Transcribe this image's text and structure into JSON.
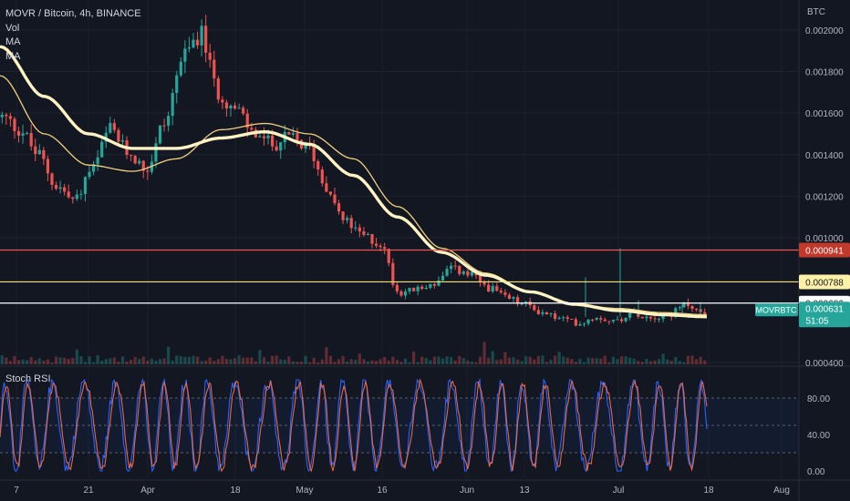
{
  "legend": {
    "title": "MOVR / Bitcoin, 4h, BINANCE",
    "vol": "Vol",
    "ma1": "MA",
    "ma2": "MA"
  },
  "rsi": {
    "title": "Stoch RSI"
  },
  "axis": {
    "unit": "BTC"
  },
  "colors": {
    "bg": "#131722",
    "up": "#26a69a",
    "down": "#ef5350",
    "ma_slow": "#fff3c4",
    "ma_fast": "#f0d080",
    "rsi_k": "#2962ff",
    "rsi_d": "#ff7043",
    "line_red": "#ef5350",
    "line_yellow": "#f5e07a",
    "line_white": "#ffffff"
  },
  "chart_data": [
    {
      "type": "candlestick",
      "title": "MOVR / Bitcoin, 4h, BINANCE",
      "ylabel": "BTC",
      "ylim": [
        0.0004,
        0.0021
      ],
      "y_ticks": [
        "0.002000",
        "0.001800",
        "0.001600",
        "0.001400",
        "0.001200",
        "0.001000",
        "0.000400"
      ],
      "x_ticks": [
        "7",
        "21",
        "Apr",
        "18",
        "May",
        "16",
        "Jun",
        "13",
        "Jul",
        "18",
        "Aug"
      ],
      "price_anchors": [
        0.00158,
        0.00152,
        0.0014,
        0.00125,
        0.00118,
        0.00133,
        0.00152,
        0.00141,
        0.00133,
        0.00155,
        0.00186,
        0.00198,
        0.0017,
        0.00161,
        0.0015,
        0.00145,
        0.00148,
        0.00143,
        0.00125,
        0.00108,
        0.00101,
        0.00097,
        0.00074,
        0.00075,
        0.00078,
        0.00085,
        0.00082,
        0.00076,
        0.00071,
        0.00068,
        0.00064,
        0.00061,
        0.00059,
        0.00062,
        0.0006,
        0.00064,
        0.00062,
        0.00063,
        0.00068,
        0.00063
      ],
      "ma_fast_anchors": [
        0.00178,
        0.0015,
        0.00135,
        0.00132,
        0.00138,
        0.00152,
        0.00155,
        0.0015,
        0.00138,
        0.00115,
        0.00095,
        0.00083,
        0.00074,
        0.00068,
        0.00066,
        0.00064,
        0.00063
      ],
      "ma_slow_anchors": [
        0.00192,
        0.00168,
        0.0015,
        0.00143,
        0.00143,
        0.00148,
        0.00151,
        0.00145,
        0.0013,
        0.0011,
        0.00093,
        0.00082,
        0.00074,
        0.00068,
        0.00065,
        0.00063,
        0.00062
      ],
      "horizontal_lines": [
        {
          "label": "0.000941",
          "value": 0.000941,
          "style": "red"
        },
        {
          "label": "0.000788",
          "value": 0.000788,
          "style": "yellow"
        },
        {
          "label": "0.000686",
          "value": 0.000686,
          "style": "white"
        }
      ],
      "last_price": {
        "symbol": "MOVRBTC",
        "value": "0.000631",
        "countdown": "51:05",
        "price": 0.000631
      }
    },
    {
      "type": "line",
      "title": "Stoch RSI",
      "ylim": [
        0,
        100
      ],
      "y_ticks": [
        "80.00",
        "40.00",
        "0.00"
      ],
      "bands": [
        20,
        50,
        80
      ],
      "series": [
        {
          "values": []
        },
        {
          "values": []
        }
      ]
    }
  ]
}
